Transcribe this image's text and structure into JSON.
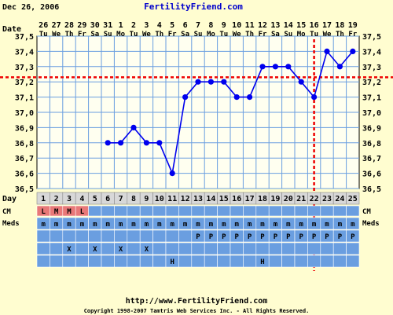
{
  "header": {
    "date": "Dec 26, 2006",
    "site": "FertilityFriend.com"
  },
  "labels": {
    "date_row": "Date",
    "day_row": "Day",
    "cm_row": "CM",
    "meds_row": "Meds"
  },
  "chart_data": {
    "type": "line",
    "title": "",
    "xlabel": "Day",
    "ylabel": "",
    "ylim": [
      36.5,
      37.5
    ],
    "y_ticks": [
      "36,5",
      "36,6",
      "36,7",
      "36,8",
      "36,9",
      "37,0",
      "37,1",
      "37,2",
      "37,3",
      "37,4",
      "37,5"
    ],
    "dates": [
      "26",
      "27",
      "28",
      "29",
      "30",
      "31",
      "1",
      "2",
      "3",
      "4",
      "5",
      "6",
      "7",
      "8",
      "9",
      "10",
      "11",
      "12",
      "13",
      "14",
      "15",
      "16",
      "17",
      "18",
      "19"
    ],
    "weekdays": [
      "Tu",
      "We",
      "Th",
      "Fr",
      "Sa",
      "Su",
      "Mo",
      "Tu",
      "We",
      "Th",
      "Fr",
      "Sa",
      "Su",
      "Mo",
      "Tu",
      "We",
      "Th",
      "Fr",
      "Sa",
      "Su",
      "Mo",
      "Tu",
      "We",
      "Th",
      "Fr"
    ],
    "days": [
      1,
      2,
      3,
      4,
      5,
      6,
      7,
      8,
      9,
      10,
      11,
      12,
      13,
      14,
      15,
      16,
      17,
      18,
      19,
      20,
      21,
      22,
      23,
      24,
      25
    ],
    "temps": [
      null,
      null,
      null,
      null,
      null,
      36.8,
      36.8,
      36.9,
      36.8,
      36.8,
      36.6,
      37.1,
      37.2,
      37.2,
      37.2,
      37.1,
      37.1,
      37.3,
      37.3,
      37.3,
      37.2,
      37.1,
      37.4,
      37.3,
      37.4
    ],
    "coverline": 37.23,
    "ovulation_day": 22,
    "grid": true,
    "line_color": "#0000ee",
    "coverline_color": "#ee0000",
    "cm": [
      "L",
      "M",
      "M",
      "L",
      "",
      "",
      "",
      "",
      "",
      "",
      "",
      "",
      "",
      "",
      "",
      "",
      "",
      "",
      "",
      "",
      "",
      "",
      "",
      "",
      ""
    ],
    "meds": [
      [
        "m",
        "m",
        "m",
        "m",
        "m",
        "m",
        "m",
        "m",
        "m",
        "m",
        "m",
        "m",
        "m",
        "m",
        "m",
        "m",
        "m",
        "m",
        "m",
        "m",
        "m",
        "m",
        "m",
        "m",
        "m"
      ],
      [
        "",
        "",
        "",
        "",
        "",
        "",
        "",
        "",
        "",
        "",
        "",
        "",
        "P",
        "P",
        "P",
        "P",
        "P",
        "P",
        "P",
        "P",
        "P",
        "P",
        "P",
        "P",
        "P"
      ],
      [
        "",
        "",
        "X",
        "",
        "X",
        "",
        "X",
        "",
        "X",
        "",
        "",
        "",
        "",
        "",
        "",
        "",
        "",
        "",
        "",
        "",
        "",
        "",
        "",
        "",
        ""
      ],
      [
        "",
        "",
        "",
        "",
        "",
        "",
        "",
        "",
        "",
        "",
        "H",
        "",
        "",
        "",
        "",
        "",
        "",
        "H",
        "",
        "",
        "",
        "",
        "",
        "",
        ""
      ]
    ],
    "colors": {
      "cm_marked": "#e87878",
      "cm_empty": "#6a9ee0",
      "meds_cell": "#6a9ee0",
      "grid": "#6a9ee0",
      "day_cell": "#d8d8d8",
      "background": "#fffdd0",
      "plot_bg": "#fffff0"
    }
  },
  "footer": {
    "url": "http://www.FertilityFriend.com",
    "copyright": "Copyright 1998-2007 Tamtris Web Services Inc. - All Rights Reserved."
  }
}
